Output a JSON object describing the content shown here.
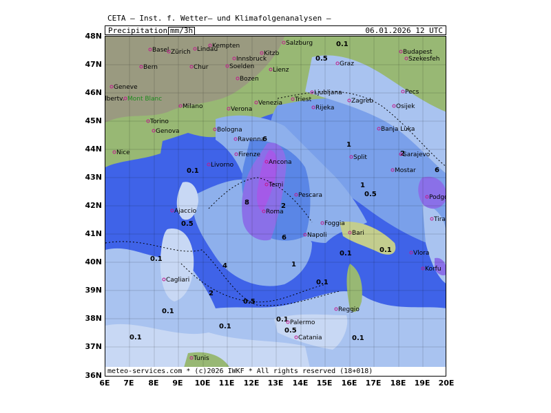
{
  "header": {
    "title": "CETA – Inst. f. Wetter– und Klimafolgenanalysen –",
    "variable": "Precipitation",
    "unit": "mm/3h",
    "datetime": "06.01.2026 12 UTC"
  },
  "footer": {
    "copyright": "meteo-services.com * (c)2026 IWKF * All rights reserved (18+018)"
  },
  "axes": {
    "lat_labels": [
      "48N",
      "47N",
      "46N",
      "45N",
      "44N",
      "43N",
      "42N",
      "41N",
      "40N",
      "39N",
      "38N",
      "37N",
      "36N"
    ],
    "lon_labels": [
      "6E",
      "7E",
      "8E",
      "9E",
      "10E",
      "11E",
      "12E",
      "13E",
      "14E",
      "15E",
      "16E",
      "17E",
      "18E",
      "19E",
      "20E"
    ]
  },
  "colors": {
    "sea": "#3f63e8",
    "precip_0_1": "#c8d8f4",
    "precip_0_5": "#a9c3f0",
    "precip_1": "#8eb0ec",
    "precip_2": "#7aa0ea",
    "precip_4": "#5a86e6",
    "precip_6": "#8a70e8",
    "precip_8": "#a45ae8",
    "land_low": "#98b874",
    "land_high": "#c3cd8e",
    "alps": "#9a9a80",
    "border": "#000000",
    "city": "#c0198c"
  },
  "cities": [
    {
      "name": "Basel"
    },
    {
      "name": "Zürich"
    },
    {
      "name": "Lindau"
    },
    {
      "name": "Kempten"
    },
    {
      "name": "Salzburg"
    },
    {
      "name": "Kitzb"
    },
    {
      "name": "Innsbruck"
    },
    {
      "name": "Bern"
    },
    {
      "name": "Chur"
    },
    {
      "name": "Soelden"
    },
    {
      "name": "Lienz"
    },
    {
      "name": "Graz"
    },
    {
      "name": "Budapest"
    },
    {
      "name": "Szekesfeh"
    },
    {
      "name": "Geneve"
    },
    {
      "name": "Albertv."
    },
    {
      "name": "Mont Blanc"
    },
    {
      "name": "Bozen"
    },
    {
      "name": "Milano"
    },
    {
      "name": "Venezia"
    },
    {
      "name": "Verona"
    },
    {
      "name": "Ljubljana"
    },
    {
      "name": "Zagreb"
    },
    {
      "name": "Triest"
    },
    {
      "name": "Rijeka"
    },
    {
      "name": "Pecs"
    },
    {
      "name": "Osijek"
    },
    {
      "name": "Torino"
    },
    {
      "name": "Genova"
    },
    {
      "name": "Bologna"
    },
    {
      "name": "Ravenna"
    },
    {
      "name": "Banja Luka"
    },
    {
      "name": "Nice"
    },
    {
      "name": "Firenze"
    },
    {
      "name": "Ancona"
    },
    {
      "name": "Livorno"
    },
    {
      "name": "Split"
    },
    {
      "name": "Sarajevo"
    },
    {
      "name": "Mostar"
    },
    {
      "name": "Terni"
    },
    {
      "name": "Pescara"
    },
    {
      "name": "Podgorica"
    },
    {
      "name": "Ajaccio"
    },
    {
      "name": "Roma"
    },
    {
      "name": "Foggia"
    },
    {
      "name": "Tirana"
    },
    {
      "name": "Bari"
    },
    {
      "name": "Napoli"
    },
    {
      "name": "Vlora"
    },
    {
      "name": "Korfu"
    },
    {
      "name": "Cagliari"
    },
    {
      "name": "Reggio"
    },
    {
      "name": "Palermo"
    },
    {
      "name": "Catania"
    },
    {
      "name": "Tunis"
    }
  ],
  "contour_labels": [
    "0.1",
    "0.5",
    "1",
    "2",
    "4",
    "6",
    "8"
  ]
}
